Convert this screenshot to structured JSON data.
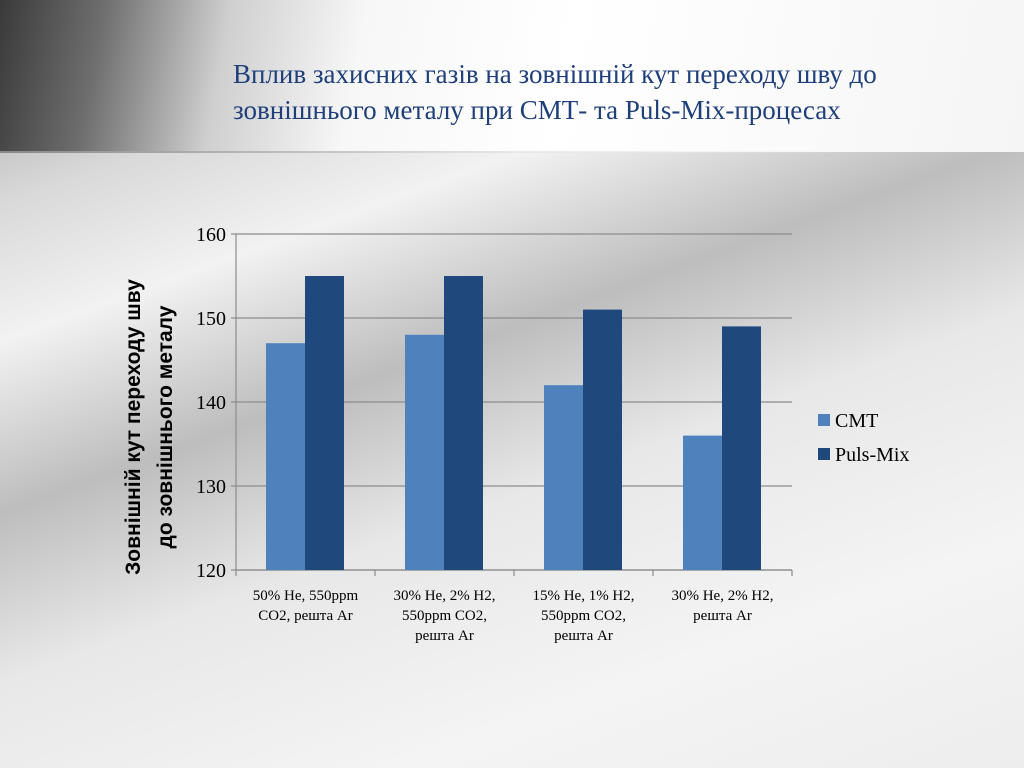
{
  "slide": {
    "title": "Вплив захисних газів на зовнішній кут переходу шву до зовнішнього металу при СМТ- та Puls-Mix-процесах"
  },
  "colors": {
    "cmt": "#4f81bd",
    "puls_mix": "#1f497d",
    "title": "#1f3f7a"
  },
  "chart_data": {
    "type": "bar",
    "title": "",
    "categories": [
      [
        "50% He, 550ppm",
        "CO2, решта Ar"
      ],
      [
        "30% He, 2% H2,",
        "550ppm CO2,",
        "решта Ar"
      ],
      [
        "15% He, 1% H2,",
        "550ppm CO2,",
        "решта Ar"
      ],
      [
        "30% He, 2% H2,",
        "решта Ar"
      ]
    ],
    "series": [
      {
        "name": "CMT",
        "values": [
          147,
          148,
          142,
          136
        ]
      },
      {
        "name": "Puls-Mix",
        "values": [
          155,
          155,
          151,
          149
        ]
      }
    ],
    "xlabel": "",
    "ylabel": [
      "Зовнішній кут переходу шву",
      "до зовнішнього металу"
    ],
    "ylim": [
      120,
      160
    ],
    "yticks": [
      120,
      130,
      140,
      150,
      160
    ],
    "grid": true,
    "legend": "right"
  }
}
